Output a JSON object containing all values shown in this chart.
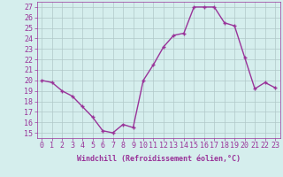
{
  "x": [
    0,
    1,
    2,
    3,
    4,
    5,
    6,
    7,
    8,
    9,
    10,
    11,
    12,
    13,
    14,
    15,
    16,
    17,
    18,
    19,
    20,
    21,
    22,
    23
  ],
  "y": [
    20.0,
    19.8,
    19.0,
    18.5,
    17.5,
    16.5,
    15.2,
    15.0,
    15.8,
    15.5,
    20.0,
    21.5,
    23.2,
    24.3,
    24.5,
    27.0,
    27.0,
    27.0,
    25.5,
    25.2,
    22.2,
    19.2,
    19.8,
    19.3
  ],
  "line_color": "#993399",
  "marker": "+",
  "marker_size": 3,
  "bg_color": "#d5eeed",
  "grid_color": "#b0c8c8",
  "axis_color": "#993399",
  "xlabel": "Windchill (Refroidissement éolien,°C)",
  "xlabel_fontsize": 6,
  "ylabel_ticks": [
    15,
    16,
    17,
    18,
    19,
    20,
    21,
    22,
    23,
    24,
    25,
    26,
    27
  ],
  "xlim": [
    -0.5,
    23.5
  ],
  "ylim": [
    14.5,
    27.5
  ],
  "tick_fontsize": 6,
  "line_width": 1.0,
  "marker_edge_width": 1.0
}
